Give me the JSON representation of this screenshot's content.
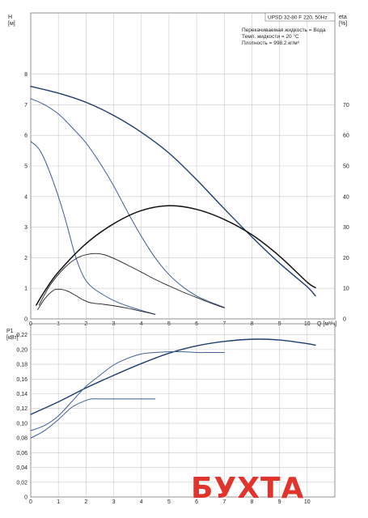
{
  "info": {
    "model": "UPSD 32-80 F 220, 50Hz",
    "lines": [
      "Перекачиваемая жидкость = Вода",
      "Темп. жидкости = 20 °C",
      "Плотность = 998.2 кг/м³"
    ]
  },
  "watermark": "БУХТА",
  "colors": {
    "dark_blue": "#1f3d73",
    "mid_blue": "#3f5e9a",
    "black": "#111111",
    "grid": "#c8c8c8"
  },
  "chart_data": [
    {
      "type": "line",
      "title": "",
      "xlabel": "Q [м³/ч]",
      "ylabel": "H [м]",
      "y2label": "eta [%]",
      "x_ticks": [
        0,
        1,
        2,
        3,
        4,
        5,
        6,
        7,
        8,
        9,
        10
      ],
      "y_ticks": [
        0,
        1,
        2,
        3,
        4,
        5,
        6,
        7,
        8
      ],
      "y2_ticks": [
        0,
        10,
        20,
        30,
        40,
        50,
        60,
        70
      ],
      "xlim": [
        0,
        11
      ],
      "ylim": [
        0,
        10
      ],
      "y2lim": [
        0,
        100
      ],
      "grid": true,
      "series": [
        {
          "axis": "y",
          "color": "#1f3d73",
          "width": 1.4,
          "points": [
            [
              0,
              7.6
            ],
            [
              1,
              7.38
            ],
            [
              2,
              7.08
            ],
            [
              3,
              6.65
            ],
            [
              4,
              6.1
            ],
            [
              5,
              5.42
            ],
            [
              6,
              4.55
            ],
            [
              7,
              3.6
            ],
            [
              8,
              2.68
            ],
            [
              9,
              1.82
            ],
            [
              10,
              1.05
            ],
            [
              10.3,
              0.75
            ]
          ]
        },
        {
          "axis": "y",
          "color": "#3f5e9a",
          "width": 1.0,
          "points": [
            [
              0,
              7.2
            ],
            [
              0.5,
              7.0
            ],
            [
              1,
              6.7
            ],
            [
              1.5,
              6.25
            ],
            [
              2,
              5.75
            ],
            [
              2.5,
              5.1
            ],
            [
              3,
              4.35
            ],
            [
              3.5,
              3.5
            ],
            [
              4,
              2.7
            ],
            [
              4.5,
              2.0
            ],
            [
              5,
              1.45
            ],
            [
              5.5,
              1.05
            ],
            [
              6,
              0.75
            ],
            [
              6.5,
              0.55
            ],
            [
              7,
              0.38
            ]
          ]
        },
        {
          "axis": "y",
          "color": "#3f5e9a",
          "width": 1.0,
          "points": [
            [
              0,
              5.8
            ],
            [
              0.3,
              5.55
            ],
            [
              0.6,
              5.0
            ],
            [
              1,
              4.0
            ],
            [
              1.3,
              3.1
            ],
            [
              1.6,
              2.1
            ],
            [
              1.9,
              1.4
            ],
            [
              2.2,
              1.05
            ],
            [
              2.6,
              0.8
            ],
            [
              3,
              0.6
            ],
            [
              3.5,
              0.42
            ],
            [
              4,
              0.28
            ],
            [
              4.5,
              0.15
            ]
          ]
        },
        {
          "axis": "y2",
          "color": "#111111",
          "width": 1.5,
          "points": [
            [
              0.2,
              4.5
            ],
            [
              0.5,
              9
            ],
            [
              1,
              15.3
            ],
            [
              2,
              24.6
            ],
            [
              3,
              31.1
            ],
            [
              4,
              35.4
            ],
            [
              5,
              37
            ],
            [
              6,
              35.8
            ],
            [
              7,
              32.5
            ],
            [
              8,
              27.5
            ],
            [
              9,
              20.5
            ],
            [
              10,
              12
            ],
            [
              10.3,
              10.2
            ]
          ]
        },
        {
          "axis": "y2",
          "color": "#222222",
          "width": 0.9,
          "points": [
            [
              0.3,
              4.5
            ],
            [
              0.7,
              11
            ],
            [
              1.2,
              16.5
            ],
            [
              1.7,
              20
            ],
            [
              2.2,
              21.3
            ],
            [
              2.6,
              21.1
            ],
            [
              3,
              19.8
            ],
            [
              3.5,
              17.6
            ],
            [
              4,
              15.3
            ],
            [
              4.5,
              12.9
            ],
            [
              5,
              10.8
            ],
            [
              5.5,
              8.8
            ],
            [
              6,
              7
            ],
            [
              6.5,
              5.2
            ],
            [
              7,
              3.6
            ]
          ]
        },
        {
          "axis": "y2",
          "color": "#222222",
          "width": 0.9,
          "points": [
            [
              0.25,
              3
            ],
            [
              0.5,
              6.5
            ],
            [
              0.8,
              9.2
            ],
            [
              1,
              9.7
            ],
            [
              1.3,
              9.2
            ],
            [
              1.6,
              7.8
            ],
            [
              1.9,
              6.2
            ],
            [
              2.2,
              5.2
            ],
            [
              2.6,
              4.8
            ],
            [
              3,
              4.3
            ],
            [
              3.5,
              3.5
            ],
            [
              4,
              2.5
            ],
            [
              4.5,
              1.5
            ]
          ]
        }
      ]
    },
    {
      "type": "line",
      "title": "",
      "xlabel": "Q [м³/ч]",
      "ylabel": "P1 [кВт]",
      "x_ticks": [
        0,
        1,
        2,
        3,
        4,
        5,
        6,
        7,
        8,
        9,
        10
      ],
      "x_tick_labels": [
        "0",
        "1",
        "2",
        "3",
        "4",
        "5",
        "6",
        "7",
        "8",
        "9",
        "10"
      ],
      "y_ticks": [
        0,
        0.02,
        0.04,
        0.06,
        0.08,
        0.1,
        0.12,
        0.14,
        0.16,
        0.18,
        0.2,
        0.22
      ],
      "y_tick_labels": [
        "0",
        "0,02",
        "0,04",
        "0,06",
        "0,08",
        "0,10",
        "0,12",
        "0,14",
        "0,16",
        "0,18",
        "0,20",
        "0,22"
      ],
      "xlim": [
        0,
        11
      ],
      "ylim": [
        0,
        0.235
      ],
      "grid": true,
      "series": [
        {
          "color": "#1f3d73",
          "width": 1.4,
          "points": [
            [
              0,
              0.112
            ],
            [
              1,
              0.129
            ],
            [
              2,
              0.148
            ],
            [
              3,
              0.165
            ],
            [
              4,
              0.181
            ],
            [
              5,
              0.195
            ],
            [
              6,
              0.205
            ],
            [
              7,
              0.211
            ],
            [
              8,
              0.214
            ],
            [
              9,
              0.213
            ],
            [
              10,
              0.208
            ],
            [
              10.3,
              0.206
            ]
          ]
        },
        {
          "color": "#3f5e9a",
          "width": 1.0,
          "points": [
            [
              0,
              0.09
            ],
            [
              0.5,
              0.097
            ],
            [
              1,
              0.11
            ],
            [
              1.5,
              0.13
            ],
            [
              2,
              0.15
            ],
            [
              2.5,
              0.165
            ],
            [
              3,
              0.179
            ],
            [
              3.5,
              0.188
            ],
            [
              4,
              0.194
            ],
            [
              4.5,
              0.196
            ],
            [
              5,
              0.197
            ],
            [
              5.5,
              0.197
            ],
            [
              6,
              0.196
            ],
            [
              6.5,
              0.196
            ],
            [
              7,
              0.196
            ]
          ]
        },
        {
          "color": "#3f5e9a",
          "width": 1.0,
          "points": [
            [
              0,
              0.08
            ],
            [
              0.5,
              0.09
            ],
            [
              1,
              0.105
            ],
            [
              1.5,
              0.122
            ],
            [
              2,
              0.131
            ],
            [
              2.2,
              0.133
            ],
            [
              2.5,
              0.133
            ],
            [
              3,
              0.133
            ],
            [
              3.5,
              0.133
            ],
            [
              4,
              0.133
            ],
            [
              4.5,
              0.133
            ]
          ]
        }
      ]
    }
  ]
}
